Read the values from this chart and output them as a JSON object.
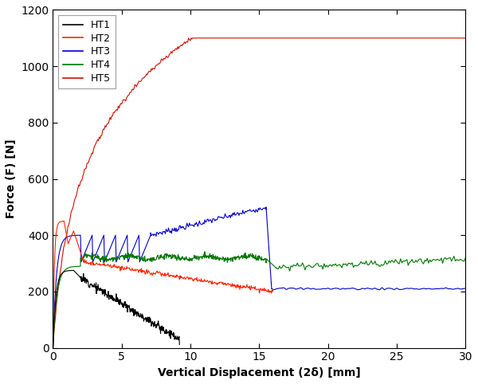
{
  "title": "",
  "xlabel": "Vertical Displacement (2δ) [mm]",
  "ylabel": "Force (F) [N]",
  "xlim": [
    0,
    30
  ],
  "ylim": [
    0,
    1200
  ],
  "xticks": [
    0,
    5,
    10,
    15,
    20,
    25,
    30
  ],
  "yticks": [
    0,
    200,
    400,
    600,
    800,
    1000,
    1200
  ],
  "legend_labels": [
    "HT1",
    "HT2",
    "HT3",
    "HT4",
    "HT5"
  ],
  "colors": {
    "HT1": "#000000",
    "HT2": "#ff2200",
    "HT3": "#0000cc",
    "HT4": "#007700",
    "HT5": "#cc1100"
  },
  "linewidth": 0.8,
  "background_color": "#ffffff"
}
